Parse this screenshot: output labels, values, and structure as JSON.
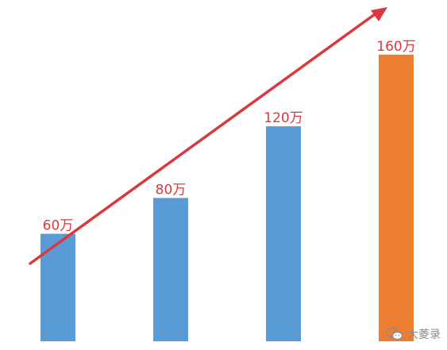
{
  "chart_data": {
    "type": "bar",
    "categories": [
      "",
      "",
      "",
      ""
    ],
    "values": [
      60,
      80,
      120,
      160
    ],
    "data_labels": [
      "60万",
      "80万",
      "120万",
      "160万"
    ],
    "title": "",
    "xlabel": "",
    "ylabel": "",
    "ylim": [
      0,
      171
    ],
    "grid": false,
    "legend": "none",
    "colors": [
      "#5b9bd5",
      "#5b9bd5",
      "#5b9bd5",
      "#ed7d31"
    ],
    "label_color": "#d9383f",
    "annotation": {
      "type": "trend-arrow",
      "color": "#d9383f"
    }
  },
  "watermark": {
    "text": "大菱录",
    "icon": "wechat-icon"
  }
}
